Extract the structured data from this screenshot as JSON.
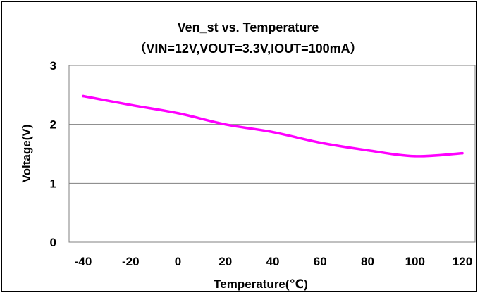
{
  "chart_data": {
    "type": "line",
    "title": "Ven_st vs. Temperature",
    "subtitle": "（VIN=12V,VOUT=3.3V,IOUT=100mA）",
    "xlabel": "Temperature(℃)",
    "ylabel": "Voltage(V)",
    "xlim": [
      -40,
      120
    ],
    "ylim": [
      0,
      3
    ],
    "x_ticks": [
      -40,
      -20,
      0,
      20,
      40,
      60,
      80,
      100,
      120
    ],
    "y_ticks": [
      0,
      1,
      2,
      3
    ],
    "grid": "horizontal",
    "legend": "none",
    "series": [
      {
        "color": "#ff00ff",
        "x": [
          -40,
          -20,
          0,
          20,
          40,
          60,
          80,
          100,
          120
        ],
        "y": [
          2.48,
          2.33,
          2.19,
          2.0,
          1.87,
          1.69,
          1.56,
          1.46,
          1.51
        ]
      }
    ]
  }
}
